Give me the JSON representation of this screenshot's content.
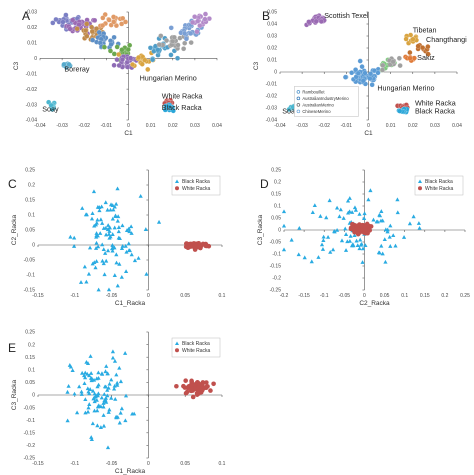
{
  "chart_data": [
    {
      "panel": "A",
      "type": "scatter",
      "xlabel": "C1",
      "ylabel": "C3",
      "xlim": [
        -0.04,
        0.04
      ],
      "ylim": [
        -0.04,
        0.03
      ],
      "xticks": [
        "-0.04",
        "-0.03",
        "-0.02",
        "-0.01",
        "0",
        "0.01",
        "0.02",
        "0.03",
        "0.04"
      ],
      "yticks": [
        "-0.04",
        "-0.03",
        "-0.02",
        "-0.01",
        "0",
        "0.01",
        "0.02",
        "0.03"
      ],
      "annotations": [
        {
          "text": "Boreray",
          "x": -0.029,
          "y": -0.0085
        },
        {
          "text": "Soay",
          "x": -0.039,
          "y": -0.0345
        },
        {
          "text": "Hungarian Merino",
          "x": 0.005,
          "y": -0.0145
        },
        {
          "text": "White Racka",
          "x": 0.015,
          "y": -0.026
        },
        {
          "text": "Black Racka",
          "x": 0.015,
          "y": -0.0335
        }
      ],
      "clusters": [
        {
          "color": "#7b7fc4",
          "cx": -0.027,
          "cy": 0.024,
          "sx": 0.0035,
          "sy": 0.002,
          "n": 26
        },
        {
          "color": "#9a6ab3",
          "cx": -0.021,
          "cy": 0.021,
          "sx": 0.0035,
          "sy": 0.0025,
          "n": 26
        },
        {
          "color": "#c08a4a",
          "cx": -0.017,
          "cy": 0.016,
          "sx": 0.003,
          "sy": 0.0025,
          "n": 22
        },
        {
          "color": "#5d8fc6",
          "cx": -0.011,
          "cy": 0.011,
          "sx": 0.003,
          "sy": 0.003,
          "n": 24
        },
        {
          "color": "#e09a66",
          "cx": -0.007,
          "cy": 0.024,
          "sx": 0.003,
          "sy": 0.002,
          "n": 18
        },
        {
          "color": "#6aa84f",
          "cx": -0.004,
          "cy": 0.004,
          "sx": 0.003,
          "sy": 0.003,
          "n": 22
        },
        {
          "color": "#8e6bb5",
          "cx": 0.0,
          "cy": -0.002,
          "sx": 0.003,
          "sy": 0.003,
          "n": 24
        },
        {
          "color": "#d9a441",
          "cx": 0.006,
          "cy": -0.001,
          "sx": 0.003,
          "sy": 0.003,
          "n": 20
        },
        {
          "color": "#4e9dc8",
          "cx": 0.014,
          "cy": 0.006,
          "sx": 0.003,
          "sy": 0.003,
          "n": 22
        },
        {
          "color": "#a0a0a0",
          "cx": 0.02,
          "cy": 0.011,
          "sx": 0.003,
          "sy": 0.003,
          "n": 22
        },
        {
          "color": "#7a9fd4",
          "cx": 0.028,
          "cy": 0.019,
          "sx": 0.003,
          "sy": 0.003,
          "n": 24
        },
        {
          "color": "#b38ac9",
          "cx": 0.033,
          "cy": 0.024,
          "sx": 0.002,
          "sy": 0.002,
          "n": 16
        },
        {
          "color": "#55aacc",
          "cx": -0.028,
          "cy": -0.0045,
          "sx": 0.0012,
          "sy": 0.0012,
          "n": 10
        },
        {
          "color": "#4bb6cf",
          "cx": -0.034,
          "cy": -0.03,
          "sx": 0.0012,
          "sy": 0.0012,
          "n": 10
        },
        {
          "color": "#c0504d",
          "cx": 0.018,
          "cy": -0.029,
          "sx": 0.001,
          "sy": 0.0008,
          "n": 18
        },
        {
          "color": "#2aa6d8",
          "cx": 0.018,
          "cy": -0.032,
          "sx": 0.001,
          "sy": 0.0008,
          "n": 18
        }
      ]
    },
    {
      "panel": "B",
      "type": "scatter",
      "xlabel": "C1",
      "ylabel": "C3",
      "xlim": [
        -0.04,
        0.04
      ],
      "ylim": [
        -0.04,
        0.05
      ],
      "xticks": [
        "-0.04",
        "-0.03",
        "-0.02",
        "-0.01",
        "0",
        "0.01",
        "0.02",
        "0.03",
        "0.04"
      ],
      "yticks": [
        "-0.04",
        "-0.03",
        "-0.02",
        "-0.01",
        "0",
        "0.01",
        "0.02",
        "0.03",
        "0.04",
        "0.05"
      ],
      "annotations": [
        {
          "text": "Scottish Texel",
          "x": -0.02,
          "y": 0.045
        },
        {
          "text": "Tibetan",
          "x": 0.02,
          "y": 0.033
        },
        {
          "text": "Changthangi",
          "x": 0.026,
          "y": 0.025
        },
        {
          "text": "Sakiz",
          "x": 0.022,
          "y": 0.01
        },
        {
          "text": "Hungarian Merino",
          "x": 0.004,
          "y": -0.0155
        },
        {
          "text": "White Racka",
          "x": 0.021,
          "y": -0.028
        },
        {
          "text": "Black Racka",
          "x": 0.021,
          "y": -0.0345
        },
        {
          "text": "Soay",
          "x": -0.039,
          "y": -0.0345
        }
      ],
      "legend": [
        "Rambouillet",
        "AustralianIndustryMerino",
        "AustralianMerino",
        "ChineseMerino"
      ],
      "clusters": [
        {
          "color": "#9a6ab3",
          "cx": -0.023,
          "cy": 0.043,
          "sx": 0.0025,
          "sy": 0.002,
          "n": 22
        },
        {
          "color": "#5b9bd5",
          "cx": -0.002,
          "cy": -0.004,
          "sx": 0.004,
          "sy": 0.004,
          "n": 55
        },
        {
          "color": "#d9a441",
          "cx": 0.02,
          "cy": 0.027,
          "sx": 0.002,
          "sy": 0.002,
          "n": 10
        },
        {
          "color": "#c07030",
          "cx": 0.024,
          "cy": 0.018,
          "sx": 0.002,
          "sy": 0.002,
          "n": 10
        },
        {
          "color": "#e07b39",
          "cx": 0.019,
          "cy": 0.012,
          "sx": 0.0015,
          "sy": 0.0015,
          "n": 8
        },
        {
          "color": "#7fc97f",
          "cx": 0.008,
          "cy": 0.004,
          "sx": 0.0025,
          "sy": 0.0025,
          "n": 10
        },
        {
          "color": "#a0a0a0",
          "cx": 0.012,
          "cy": 0.008,
          "sx": 0.0025,
          "sy": 0.0025,
          "n": 10
        },
        {
          "color": "#4bb6cf",
          "cx": -0.034,
          "cy": -0.03,
          "sx": 0.0012,
          "sy": 0.0012,
          "n": 10
        },
        {
          "color": "#c0504d",
          "cx": 0.016,
          "cy": -0.029,
          "sx": 0.001,
          "sy": 0.0008,
          "n": 16
        },
        {
          "color": "#2aa6d8",
          "cx": 0.016,
          "cy": -0.032,
          "sx": 0.001,
          "sy": 0.0008,
          "n": 16
        }
      ]
    },
    {
      "panel": "C",
      "type": "scatter",
      "xlabel": "C1_Racka",
      "ylabel": "C2_Racka",
      "xlim": [
        -0.15,
        0.1
      ],
      "ylim": [
        -0.15,
        0.25
      ],
      "xticks": [
        "-0.15",
        "-0.1",
        "-0.05",
        "0",
        "0.05",
        "0.1"
      ],
      "yticks": [
        "-0.15",
        "-0.1",
        "-0.05",
        "0",
        "0.05",
        "0.1",
        "0.15",
        "0.2",
        "0.25"
      ],
      "legend": [
        "Black Racka",
        "White Racka"
      ],
      "series": [
        {
          "name": "Black Racka",
          "marker": "triangle",
          "color": "#29abe2",
          "cx": -0.055,
          "cy": 0.02,
          "sx": 0.022,
          "sy": 0.07,
          "n": 110
        },
        {
          "name": "White Racka",
          "marker": "circle",
          "color": "#c0504d",
          "cx": 0.065,
          "cy": -0.001,
          "sx": 0.008,
          "sy": 0.005,
          "n": 70
        }
      ]
    },
    {
      "panel": "D",
      "type": "scatter",
      "xlabel": "C2_Racka",
      "ylabel": "C3_Racka",
      "xlim": [
        -0.2,
        0.25
      ],
      "ylim": [
        -0.25,
        0.25
      ],
      "xticks": [
        "-0.2",
        "-0.15",
        "-0.1",
        "-0.05",
        "0",
        "0.05",
        "0.1",
        "0.15",
        "0.2",
        "0.25"
      ],
      "yticks": [
        "-0.25",
        "-0.2",
        "-0.15",
        "-0.1",
        "-0.05",
        "0",
        "0.05",
        "0.1",
        "0.15",
        "0.2",
        "0.25"
      ],
      "legend": [
        "Black Racka",
        "White Racka"
      ],
      "series": [
        {
          "name": "Black Racka",
          "marker": "triangle",
          "color": "#29abe2",
          "cx": -0.03,
          "cy": 0.0,
          "sx": 0.07,
          "sy": 0.07,
          "n": 100
        },
        {
          "name": "White Racka",
          "marker": "circle",
          "color": "#c0504d",
          "cx": -0.01,
          "cy": 0.005,
          "sx": 0.012,
          "sy": 0.01,
          "n": 70
        }
      ]
    },
    {
      "panel": "E",
      "type": "scatter",
      "xlabel": "C1_Racka",
      "ylabel": "C3_Racka",
      "xlim": [
        -0.15,
        0.1
      ],
      "ylim": [
        -0.25,
        0.25
      ],
      "xticks": [
        "-0.15",
        "-0.1",
        "-0.05",
        "0",
        "0.05",
        "0.1"
      ],
      "yticks": [
        "-0.25",
        "-0.2",
        "-0.15",
        "-0.1",
        "-0.05",
        "0",
        "0.05",
        "0.1",
        "0.15",
        "0.2",
        "0.25"
      ],
      "legend": [
        "Black Racka",
        "White Racka"
      ],
      "series": [
        {
          "name": "Black Racka",
          "marker": "triangle",
          "color": "#29abe2",
          "cx": -0.065,
          "cy": 0.0,
          "sx": 0.02,
          "sy": 0.08,
          "n": 110
        },
        {
          "name": "White Racka",
          "marker": "circle",
          "color": "#c0504d",
          "cx": 0.065,
          "cy": 0.03,
          "sx": 0.009,
          "sy": 0.012,
          "n": 70
        }
      ]
    }
  ]
}
